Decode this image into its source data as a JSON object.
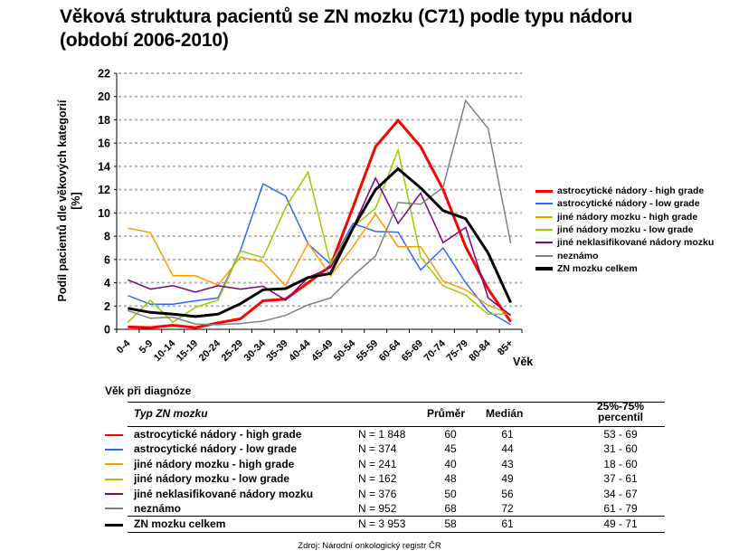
{
  "title_line1": "Věková struktura pacientů se ZN mozku (C71) podle typu nádoru",
  "title_line2": "(období 2006-2010)",
  "chart_data": {
    "type": "line",
    "title": "Věková struktura pacientů se ZN mozku (C71) podle typu nádoru (období 2006-2010)",
    "xlabel": "Věk",
    "ylabel": "Podíl pacientů dle věkových kategorií",
    "ylabel2": "[%]",
    "ylim": [
      0,
      22
    ],
    "yticks": [
      "0",
      "2",
      "4",
      "6",
      "8",
      "10",
      "12",
      "14",
      "16",
      "18",
      "20",
      "22"
    ],
    "grid": true,
    "legend_position": "right",
    "categories": [
      "0-4",
      "5-9",
      "10-14",
      "15-19",
      "20-24",
      "25-29",
      "30-34",
      "35-39",
      "40-44",
      "45-49",
      "50-54",
      "55-59",
      "60-64",
      "65-69",
      "70-74",
      "75-79",
      "80-84",
      "85+"
    ],
    "series": [
      {
        "name": "astrocytické nádory - high grade",
        "color": "#ff0000",
        "width": 3,
        "values": [
          0.2,
          0.15,
          0.35,
          0.15,
          0.55,
          0.9,
          2.45,
          2.6,
          4.0,
          5.45,
          10.5,
          15.7,
          17.95,
          15.7,
          12.0,
          7.1,
          3.45,
          0.65
        ]
      },
      {
        "name": "astrocytické nádory - low grade",
        "color": "#3366ff",
        "width": 1.5,
        "values": [
          2.9,
          2.15,
          2.15,
          2.45,
          2.7,
          6.8,
          12.5,
          11.45,
          7.35,
          5.6,
          9.1,
          8.4,
          8.35,
          5.1,
          7.0,
          4.0,
          1.55,
          0.4
        ]
      },
      {
        "name": "jiné nádory mozku - high grade",
        "color": "#ff9900",
        "width": 1.5,
        "values": [
          8.7,
          8.3,
          4.6,
          4.6,
          3.8,
          6.2,
          5.8,
          3.75,
          7.4,
          4.6,
          7.1,
          9.9,
          7.1,
          7.1,
          4.15,
          3.4,
          2.05,
          1.3
        ]
      },
      {
        "name": "jiné nádory mozku - low grade",
        "color": "#99cc00",
        "width": 1.5,
        "values": [
          0.6,
          2.5,
          0.6,
          1.9,
          2.5,
          6.75,
          6.15,
          10.45,
          13.5,
          5.6,
          8.8,
          10.4,
          15.4,
          6.2,
          3.75,
          2.95,
          1.3,
          1.3
        ]
      },
      {
        "name": "jiné neklasifikované nádory mozku",
        "color": "#800080",
        "width": 1.5,
        "values": [
          4.25,
          3.45,
          3.75,
          3.2,
          3.75,
          3.45,
          3.7,
          2.5,
          4.45,
          5.3,
          8.75,
          13.0,
          9.1,
          11.7,
          7.45,
          8.75,
          2.7,
          1.2
        ]
      },
      {
        "name": "neznámo",
        "color": "#808080",
        "width": 1.5,
        "values": [
          1.6,
          0.95,
          1.05,
          0.45,
          0.4,
          0.5,
          0.7,
          1.2,
          2.1,
          2.7,
          4.6,
          6.3,
          10.9,
          10.75,
          12.2,
          19.65,
          17.25,
          7.4
        ]
      },
      {
        "name": "ZN mozku celkem",
        "color": "#000000",
        "width": 3,
        "values": [
          1.8,
          1.45,
          1.3,
          1.1,
          1.3,
          2.2,
          3.4,
          3.5,
          4.45,
          4.8,
          8.7,
          12.0,
          13.8,
          12.15,
          10.2,
          9.5,
          6.55,
          2.3
        ]
      }
    ]
  },
  "table": {
    "caption": "Věk při diagnóze",
    "headers": {
      "type": "Typ ZN mozku",
      "mean": "Průměr",
      "median": "Medián",
      "pct_line1": "25%-75%",
      "pct_line2": "percentil"
    },
    "rows": [
      {
        "name": "astrocytické nádory - high grade",
        "n": "N = 1 848",
        "mean": "60",
        "median": "61",
        "pct": "53 - 69",
        "color": "#ff0000"
      },
      {
        "name": "astrocytické nádory - low grade",
        "n": "N = 374",
        "mean": "45",
        "median": "44",
        "pct": "31 - 60",
        "color": "#3366ff"
      },
      {
        "name": "jiné nádory mozku - high grade",
        "n": "N = 241",
        "mean": "40",
        "median": "43",
        "pct": "18 - 60",
        "color": "#ff9900"
      },
      {
        "name": "jiné nádory mozku - low grade",
        "n": "N = 162",
        "mean": "48",
        "median": "49",
        "pct": "37 - 61",
        "color": "#99cc00"
      },
      {
        "name": "jiné neklasifikované nádory mozku",
        "n": "N = 376",
        "mean": "50",
        "median": "56",
        "pct": "34 - 67",
        "color": "#800080"
      },
      {
        "name": "neznámo",
        "n": "N = 952",
        "mean": "68",
        "median": "72",
        "pct": "61 - 79",
        "color": "#808080"
      }
    ],
    "total": {
      "name": "ZN mozku celkem",
      "n": "N = 3 953",
      "mean": "58",
      "median": "61",
      "pct": "49 - 71",
      "color": "#000000"
    }
  },
  "source": "Zdroj: Národní onkologický registr ČR"
}
